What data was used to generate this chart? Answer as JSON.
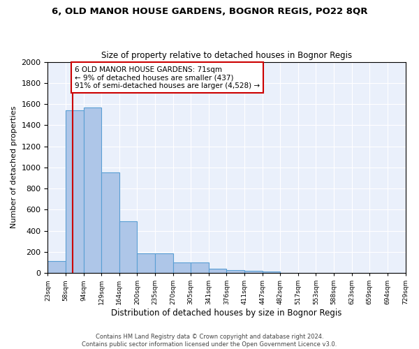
{
  "title": "6, OLD MANOR HOUSE GARDENS, BOGNOR REGIS, PO22 8QR",
  "subtitle": "Size of property relative to detached houses in Bognor Regis",
  "xlabel": "Distribution of detached houses by size in Bognor Regis",
  "ylabel": "Number of detached properties",
  "bar_values": [
    110,
    1540,
    1570,
    950,
    490,
    185,
    185,
    100,
    100,
    40,
    30,
    20,
    15,
    0,
    0,
    0,
    0,
    0,
    0,
    0
  ],
  "bin_labels": [
    "23sqm",
    "58sqm",
    "94sqm",
    "129sqm",
    "164sqm",
    "200sqm",
    "235sqm",
    "270sqm",
    "305sqm",
    "341sqm",
    "376sqm",
    "411sqm",
    "447sqm",
    "482sqm",
    "517sqm",
    "553sqm",
    "588sqm",
    "623sqm",
    "659sqm",
    "694sqm",
    "729sqm"
  ],
  "bar_color": "#aec6e8",
  "bar_edge_color": "#5a9fd4",
  "bg_color": "#eaf0fb",
  "grid_color": "#ffffff",
  "property_line_x": 1.38,
  "property_line_color": "#cc0000",
  "annotation_text": "6 OLD MANOR HOUSE GARDENS: 71sqm\n← 9% of detached houses are smaller (437)\n91% of semi-detached houses are larger (4,528) →",
  "annotation_box_color": "#ffffff",
  "annotation_box_edge": "#cc0000",
  "ylim": [
    0,
    2000
  ],
  "yticks": [
    0,
    200,
    400,
    600,
    800,
    1000,
    1200,
    1400,
    1600,
    1800,
    2000
  ],
  "footer_text": "Contains HM Land Registry data © Crown copyright and database right 2024.\nContains public sector information licensed under the Open Government Licence v3.0.",
  "n_bins": 20
}
